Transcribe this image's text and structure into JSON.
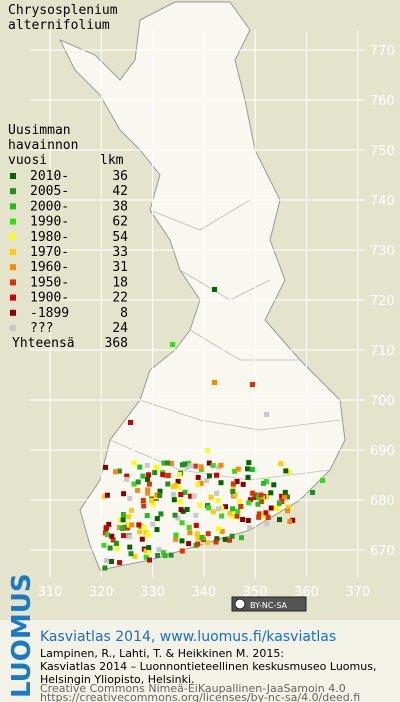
{
  "title": [
    "Chrysosplenium",
    "alternifolium"
  ],
  "legend": {
    "heading": [
      "Uusimman",
      "havainnon",
      "vuosi"
    ],
    "count_heading": "lkm",
    "items": [
      {
        "label": "2010-",
        "count": 36,
        "color": "#006400"
      },
      {
        "label": "2005-",
        "count": 42,
        "color": "#1f8f1f"
      },
      {
        "label": "2000-",
        "count": 38,
        "color": "#22bb22"
      },
      {
        "label": "1990-",
        "count": 62,
        "color": "#33dd11"
      },
      {
        "label": "1980-",
        "count": 54,
        "color": "#ffff00"
      },
      {
        "label": "1970-",
        "count": 33,
        "color": "#ffcc00"
      },
      {
        "label": "1960-",
        "count": 31,
        "color": "#ff8800"
      },
      {
        "label": "1950-",
        "count": 18,
        "color": "#e03000"
      },
      {
        "label": "1900-",
        "count": 22,
        "color": "#cc0000"
      },
      {
        "label": "-1899",
        "count": 8,
        "color": "#880000"
      },
      {
        "label": "???",
        "count": 24,
        "color": "#c8c8c8"
      }
    ],
    "total_label": "Yhteensä",
    "total": 368
  },
  "grid": {
    "x_labels": [
      310,
      320,
      330,
      340,
      350,
      360,
      370
    ],
    "y_labels": [
      770,
      760,
      750,
      740,
      730,
      720,
      710,
      700,
      690,
      680,
      670
    ]
  },
  "badge": "BY-NC-SA",
  "logo": "LUOMUS",
  "footer": {
    "heading": "Kasviatlas 2014, www.luomus.fi/kasviatlas",
    "citation": [
      "Lampinen, R., Lahti, T. & Heikkinen M. 2015:",
      "Kasviatlas 2014 – Luonnontieteellinen keskusmuseo Luomus,",
      "Helsingin Yliopisto, Helsinki."
    ],
    "license": [
      "Creative Commons Nimeä-EiKaupallinen-JaaSamoin 4.0",
      "https://creativecommons.org/licenses/by-nc-sa/4.0/deed.fi"
    ]
  }
}
